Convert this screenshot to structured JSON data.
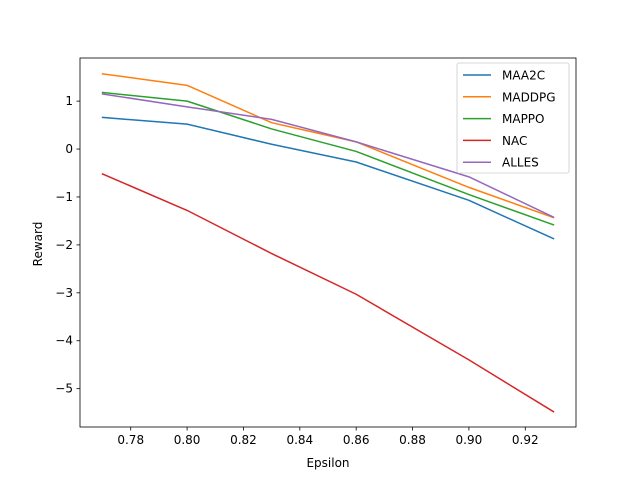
{
  "chart_data": {
    "type": "line",
    "title": "",
    "xlabel": "Epsilon",
    "ylabel": "Reward",
    "xlim": [
      0.762,
      0.938
    ],
    "ylim": [
      -5.8,
      1.9
    ],
    "xticks": [
      0.78,
      0.8,
      0.82,
      0.84,
      0.86,
      0.88,
      0.9,
      0.92
    ],
    "xtick_labels": [
      "0.78",
      "0.80",
      "0.82",
      "0.84",
      "0.86",
      "0.88",
      "0.90",
      "0.92"
    ],
    "yticks": [
      1,
      0,
      -1,
      -2,
      -3,
      -4,
      -5
    ],
    "ytick_labels": [
      "1",
      "0",
      "−1",
      "−2",
      "−3",
      "−4",
      "−5"
    ],
    "grid": false,
    "legend_position": "top-right",
    "x": [
      0.77,
      0.8,
      0.83,
      0.86,
      0.9,
      0.93
    ],
    "series": [
      {
        "name": "MAA2C",
        "color": "#1f77b4",
        "values": [
          0.66,
          0.52,
          0.1,
          -0.27,
          -1.07,
          -1.87
        ]
      },
      {
        "name": "MADDPG",
        "color": "#ff7f0e",
        "values": [
          1.57,
          1.33,
          0.55,
          0.15,
          -0.8,
          -1.43
        ]
      },
      {
        "name": "MAPPO",
        "color": "#2ca02c",
        "values": [
          1.18,
          1.0,
          0.42,
          -0.05,
          -0.95,
          -1.58
        ]
      },
      {
        "name": "NAC",
        "color": "#d62728",
        "values": [
          -0.52,
          -1.28,
          -2.18,
          -3.03,
          -4.4,
          -5.48
        ]
      },
      {
        "name": "ALLES",
        "color": "#9467bd",
        "values": [
          1.15,
          0.88,
          0.62,
          0.15,
          -0.58,
          -1.42
        ]
      }
    ]
  }
}
